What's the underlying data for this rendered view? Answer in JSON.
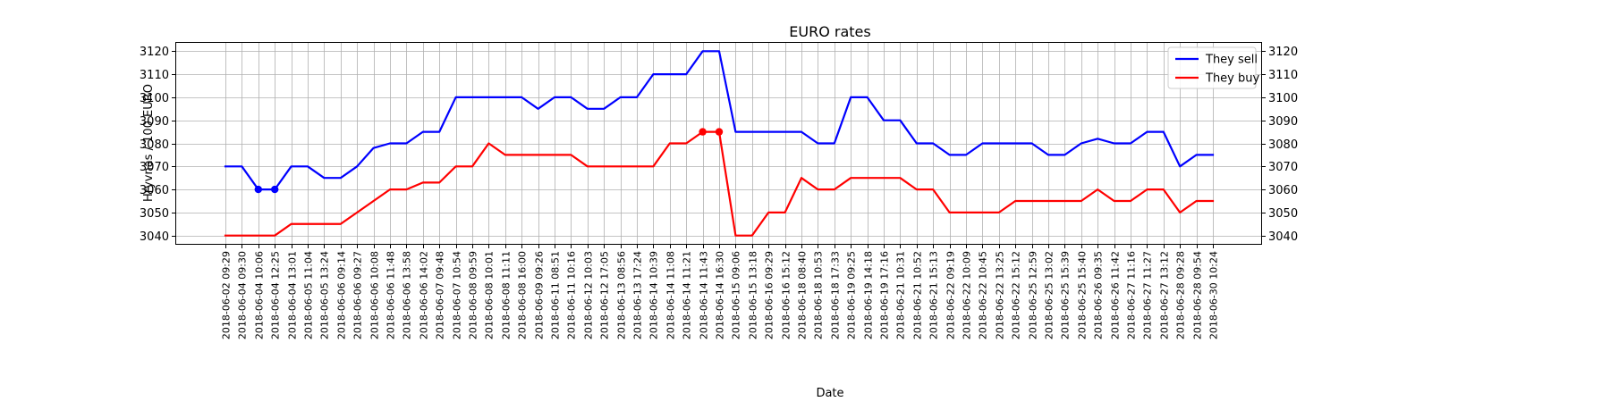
{
  "chart_data": {
    "type": "line",
    "title": "EURO rates",
    "xlabel": "Date",
    "ylabel": "Hryvnas / 100 EURO",
    "ylim": [
      3036,
      3124
    ],
    "yticks": [
      3040,
      3050,
      3060,
      3070,
      3080,
      3090,
      3100,
      3110,
      3120
    ],
    "grid": true,
    "legend_position": "top-right",
    "categories": [
      "2018-06-02 09:29",
      "2018-06-04 09:30",
      "2018-06-04 10:06",
      "2018-06-04 12:25",
      "2018-06-04 13:01",
      "2018-06-05 11:04",
      "2018-06-05 13:24",
      "2018-06-06 09:14",
      "2018-06-06 09:27",
      "2018-06-06 10:08",
      "2018-06-06 11:48",
      "2018-06-06 13:58",
      "2018-06-06 14:02",
      "2018-06-07 09:48",
      "2018-06-07 10:54",
      "2018-06-08 09:59",
      "2018-06-08 10:01",
      "2018-06-08 11:11",
      "2018-06-08 16:00",
      "2018-06-09 09:26",
      "2018-06-11 08:51",
      "2018-06-11 10:16",
      "2018-06-12 10:03",
      "2018-06-12 17:05",
      "2018-06-13 08:56",
      "2018-06-13 17:24",
      "2018-06-14 10:39",
      "2018-06-14 11:08",
      "2018-06-14 11:21",
      "2018-06-14 11:43",
      "2018-06-14 16:30",
      "2018-06-15 09:06",
      "2018-06-15 13:18",
      "2018-06-16 09:29",
      "2018-06-16 15:12",
      "2018-06-18 08:40",
      "2018-06-18 10:53",
      "2018-06-18 17:33",
      "2018-06-19 09:25",
      "2018-06-19 14:18",
      "2018-06-19 17:16",
      "2018-06-21 10:31",
      "2018-06-21 10:52",
      "2018-06-21 15:13",
      "2018-06-22 09:19",
      "2018-06-22 10:09",
      "2018-06-22 10:45",
      "2018-06-22 13:25",
      "2018-06-22 15:12",
      "2018-06-25 12:59",
      "2018-06-25 13:02",
      "2018-06-25 15:39",
      "2018-06-25 15:40",
      "2018-06-26 09:35",
      "2018-06-26 11:42",
      "2018-06-27 11:16",
      "2018-06-27 11:27",
      "2018-06-27 13:12",
      "2018-06-28 09:28",
      "2018-06-28 09:54",
      "2018-06-30 10:24"
    ],
    "series": [
      {
        "name": "They sell",
        "color": "#0000ff",
        "marker_indices": [
          2,
          3
        ],
        "values": [
          3070,
          3070,
          3060,
          3060,
          3070,
          3070,
          3065,
          3065,
          3070,
          3078,
          3080,
          3080,
          3085,
          3085,
          3100,
          3100,
          3100,
          3100,
          3100,
          3095,
          3100,
          3100,
          3095,
          3095,
          3100,
          3100,
          3110,
          3110,
          3110,
          3120,
          3120,
          3085,
          3085,
          3085,
          3085,
          3085,
          3080,
          3080,
          3100,
          3100,
          3090,
          3090,
          3080,
          3080,
          3075,
          3075,
          3080,
          3080,
          3080,
          3080,
          3075,
          3075,
          3080,
          3082,
          3080,
          3080,
          3085,
          3085,
          3070,
          3075,
          3075
        ]
      },
      {
        "name": "They buy",
        "color": "#ff0000",
        "marker_indices": [
          29,
          30
        ],
        "values": [
          3040,
          3040,
          3040,
          3040,
          3045,
          3045,
          3045,
          3045,
          3050,
          3055,
          3060,
          3060,
          3063,
          3063,
          3070,
          3070,
          3080,
          3075,
          3075,
          3075,
          3075,
          3075,
          3070,
          3070,
          3070,
          3070,
          3070,
          3080,
          3080,
          3085,
          3085,
          3040,
          3040,
          3050,
          3050,
          3065,
          3060,
          3060,
          3065,
          3065,
          3065,
          3065,
          3060,
          3060,
          3050,
          3050,
          3050,
          3050,
          3055,
          3055,
          3055,
          3055,
          3055,
          3060,
          3055,
          3055,
          3060,
          3060,
          3050,
          3055,
          3055
        ]
      }
    ]
  }
}
